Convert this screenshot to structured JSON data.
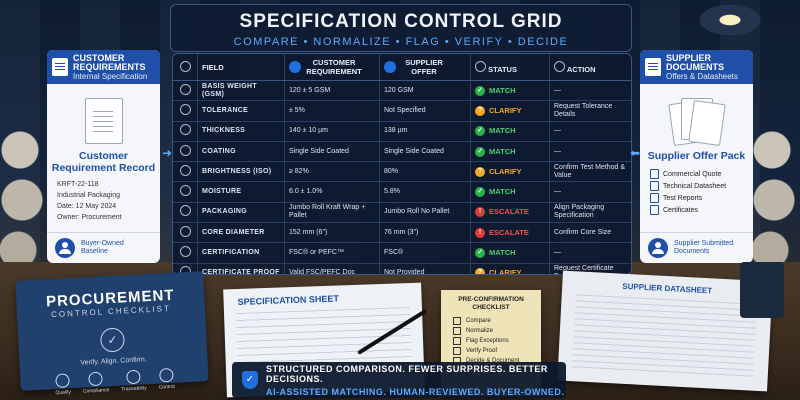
{
  "header": {
    "title": "SPECIFICATION CONTROL GRID",
    "subtitle": "COMPARE • NORMALIZE • FLAG • VERIFY • DECIDE"
  },
  "left_panel": {
    "title": "CUSTOMER REQUIREMENTS",
    "subtitle": "Internal Specification",
    "record_title": "Customer Requirement Record",
    "ref": "KRFT-22-118",
    "category": "Industrial Packaging",
    "date": "Date: 12 May 2024",
    "owner": "Owner: Procurement",
    "footer": "Buyer-Owned Baseline"
  },
  "right_panel": {
    "title": "SUPPLIER DOCUMENTS",
    "subtitle": "Offers & Datasheets",
    "pack_title": "Supplier Offer Pack",
    "items": [
      "Commercial Quote",
      "Technical Datasheet",
      "Test Reports",
      "Certificates"
    ],
    "footer": "Supplier Submitted Documents"
  },
  "grid": {
    "headers": {
      "field": "FIELD",
      "customer": "CUSTOMER REQUIREMENT",
      "supplier": "SUPPLIER OFFER",
      "status": "STATUS",
      "action": "ACTION"
    },
    "rows": [
      {
        "icon": "layers-icon",
        "field": "BASIS WEIGHT (GSM)",
        "customer": "120 ± 5 GSM",
        "supplier": "120 GSM",
        "status": "MATCH",
        "action": "—"
      },
      {
        "icon": "target-icon",
        "field": "TOLERANCE",
        "customer": "± 5%",
        "supplier": "Not Specified",
        "status": "CLARIFY",
        "action": "Request Tolerance Details"
      },
      {
        "icon": "ruler-icon",
        "field": "THICKNESS",
        "customer": "140 ± 10 µm",
        "supplier": "138 µm",
        "status": "MATCH",
        "action": "—"
      },
      {
        "icon": "brush-icon",
        "field": "COATING",
        "customer": "Single Side Coated",
        "supplier": "Single Side Coated",
        "status": "MATCH",
        "action": "—"
      },
      {
        "icon": "sun-icon",
        "field": "BRIGHTNESS (ISO)",
        "customer": "≥ 82%",
        "supplier": "80%",
        "status": "CLARIFY",
        "action": "Confirm Test Method & Value"
      },
      {
        "icon": "drop-icon",
        "field": "MOISTURE",
        "customer": "6.0 ± 1.0%",
        "supplier": "5.8%",
        "status": "MATCH",
        "action": "—"
      },
      {
        "icon": "box-icon",
        "field": "PACKAGING",
        "customer": "Jumbo Roll Kraft Wrap + Pallet",
        "supplier": "Jumbo Roll No Pallet",
        "status": "ESCALATE",
        "action": "Align Packaging Specification"
      },
      {
        "icon": "roll-icon",
        "field": "CORE DIAMETER",
        "customer": "152 mm (6\")",
        "supplier": "76 mm (3\")",
        "status": "ESCALATE",
        "action": "Confirm Core Size"
      },
      {
        "icon": "badge-icon",
        "field": "CERTIFICATION",
        "customer": "FSC® or PEFC™",
        "supplier": "FSC®",
        "status": "MATCH",
        "action": "—"
      },
      {
        "icon": "document-icon",
        "field": "CERTIFICATE PROOF",
        "customer": "Valid FSC/PEFC Doc",
        "supplier": "Not Provided",
        "status": "CLARIFY",
        "action": "Request Certificate Document"
      }
    ]
  },
  "status_colors": {
    "MATCH": "#27b34a",
    "CLARIFY": "#f5a623",
    "ESCALATE": "#e53935"
  },
  "status_text_colors": {
    "MATCH": "#4ccf6a",
    "CLARIFY": "#f5a623",
    "ESCALATE": "#ff4d4d"
  },
  "status_symbols": {
    "MATCH": "✓",
    "CLARIFY": "?",
    "ESCALATE": "!"
  },
  "desk": {
    "binder_title": "PROCUREMENT",
    "binder_subtitle": "CONTROL CHECKLIST",
    "binder_tagline": "Verify. Align. Confirm.",
    "binder_icons": [
      "Quality",
      "Compliance",
      "Traceability",
      "Control"
    ],
    "sheet_title": "SPECIFICATION SHEET",
    "checklist_title": "PRE-CONFIRMATION CHECKLIST",
    "checklist_items": [
      "Compare",
      "Normalize",
      "Flag Exceptions",
      "Verify Proof",
      "Decide & Document"
    ],
    "datasheet_title": "SUPPLIER DATASHEET"
  },
  "banner": {
    "line1": "STRUCTURED COMPARISON. FEWER SURPRISES. BETTER DECISIONS.",
    "line2": "AI-ASSISTED MATCHING. HUMAN-REVIEWED. BUYER-OWNED."
  }
}
